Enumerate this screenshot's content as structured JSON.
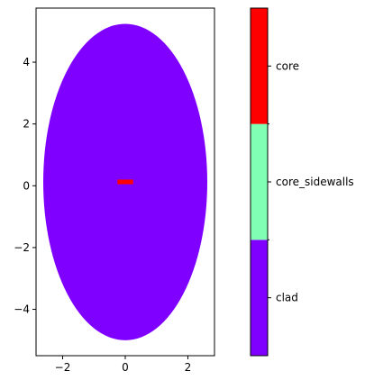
{
  "chart_data": [
    {
      "type": "heatmap",
      "title": "",
      "xlabel": "",
      "ylabel": "",
      "xlim": [
        -2.85,
        2.85
      ],
      "ylim": [
        -5.5,
        5.75
      ],
      "xticks": [
        -2,
        0,
        2
      ],
      "yticks": [
        -4,
        -2,
        0,
        2,
        4
      ],
      "xtick_labels": [
        "−2",
        "0",
        "2"
      ],
      "ytick_labels": [
        "−4",
        "−2",
        "0",
        "2",
        "4"
      ],
      "grid": false,
      "regions": [
        {
          "name": "clad",
          "shape": "ellipse",
          "cx": 0,
          "cy": 0.12,
          "rx": 2.62,
          "ry": 5.12,
          "color": "#8000ff"
        },
        {
          "name": "core",
          "shape": "rect",
          "x": [
            -0.25,
            0.25
          ],
          "y": [
            0.05,
            0.2
          ],
          "color": "#ff0000"
        }
      ]
    },
    {
      "type": "bar",
      "role": "colorbar",
      "categories": [
        "clad",
        "core_sidewalls",
        "core"
      ],
      "colors": [
        "#8000ff",
        "#80ffb4",
        "#ff0000"
      ]
    }
  ]
}
